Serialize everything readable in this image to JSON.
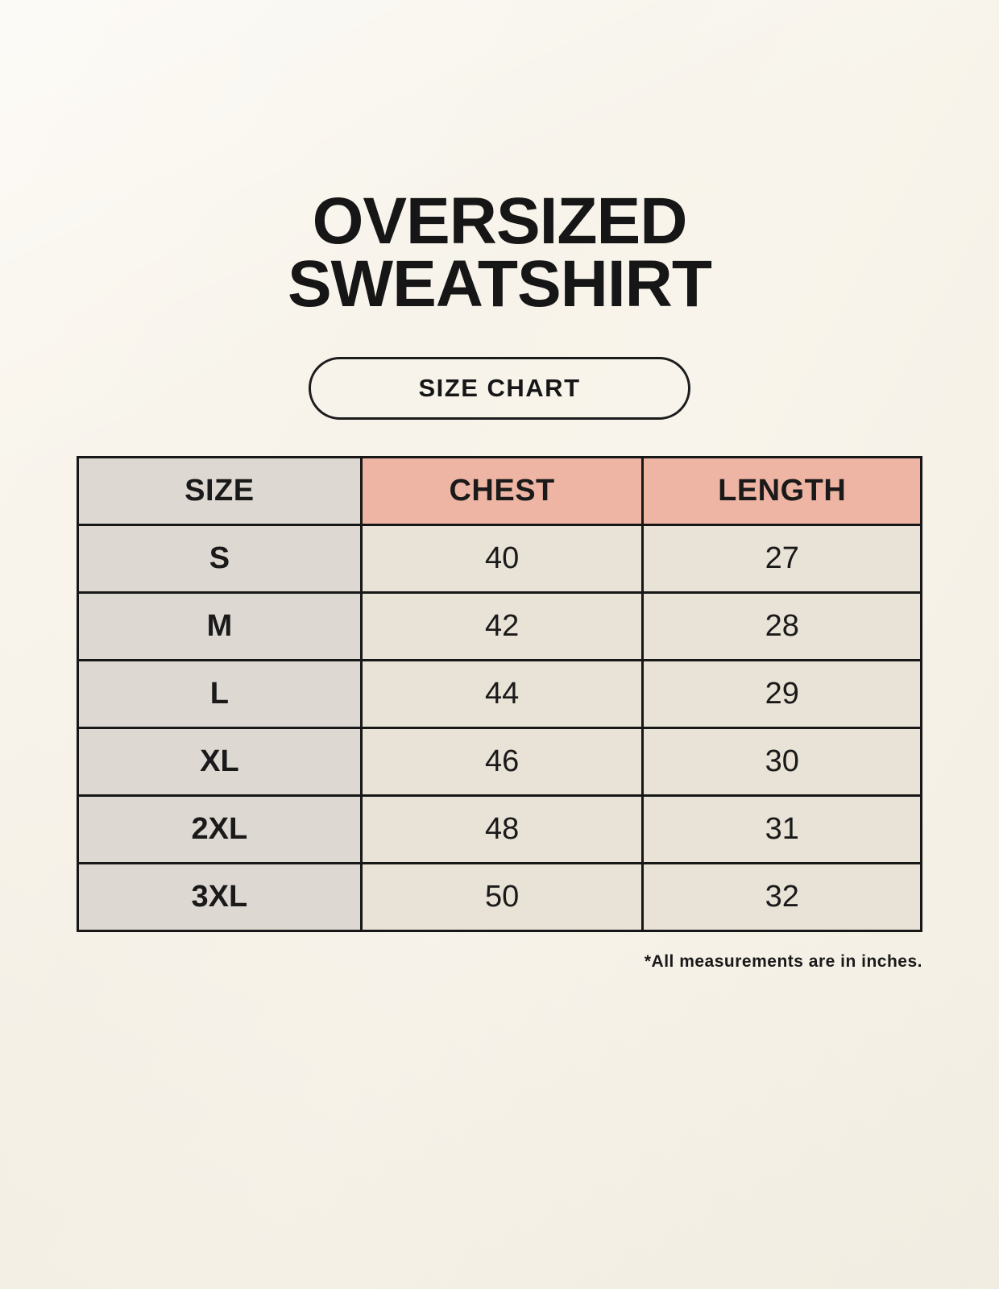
{
  "title": {
    "line1": "OVERSIZED",
    "line2": "SWEATSHIRT"
  },
  "size_chart_button": {
    "label": "SIZE CHART"
  },
  "table": {
    "headers": [
      "SIZE",
      "CHEST",
      "LENGTH"
    ],
    "rows": [
      {
        "size": "S",
        "chest": "40",
        "length": "27"
      },
      {
        "size": "M",
        "chest": "42",
        "length": "28"
      },
      {
        "size": "L",
        "chest": "44",
        "length": "29"
      },
      {
        "size": "XL",
        "chest": "46",
        "length": "30"
      },
      {
        "size": "2XL",
        "chest": "48",
        "length": "31"
      },
      {
        "size": "3XL",
        "chest": "50",
        "length": "32"
      }
    ]
  },
  "footnote": "*All measurements are in inches.",
  "colors": {
    "background": "#f7f3ea",
    "header_accent": "#efb5a4",
    "size_column": "#ded8d2",
    "value_cell": "#e9e2d6",
    "border": "#171717",
    "text": "#1a1a1a"
  },
  "chart_data": {
    "type": "table",
    "title": "OVERSIZED SWEATSHIRT — SIZE CHART",
    "columns": [
      "SIZE",
      "CHEST",
      "LENGTH"
    ],
    "rows": [
      [
        "S",
        40,
        27
      ],
      [
        "M",
        42,
        28
      ],
      [
        "L",
        44,
        29
      ],
      [
        "XL",
        46,
        30
      ],
      [
        "2XL",
        48,
        31
      ],
      [
        "3XL",
        50,
        32
      ]
    ],
    "units": "inches"
  }
}
